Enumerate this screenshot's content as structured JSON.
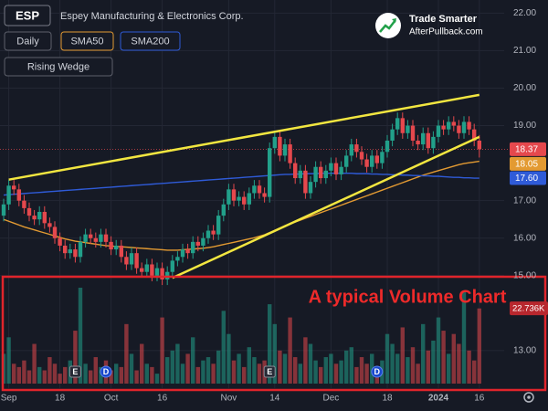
{
  "chart_data": {
    "type": "candlestick",
    "ticker": "ESP",
    "title": "Espey Manufacturing & Electronics Corp.",
    "interval": "Daily",
    "pattern": "Rising Wedge",
    "brand_title": "Trade Smarter",
    "brand_url": "AfterPullback.com",
    "annotation": "A typical Volume Chart",
    "events": [
      "E",
      "D",
      "E",
      "D"
    ],
    "categories": [
      null,
      "Sep",
      null,
      null,
      null,
      null,
      null,
      null,
      null,
      null,
      null,
      "18",
      null,
      null,
      null,
      null,
      null,
      null,
      null,
      null,
      null,
      "Oct",
      null,
      null,
      null,
      null,
      null,
      null,
      null,
      null,
      null,
      "16",
      null,
      null,
      null,
      null,
      null,
      null,
      null,
      null,
      null,
      null,
      null,
      null,
      "Nov",
      null,
      null,
      null,
      null,
      null,
      null,
      null,
      null,
      "14",
      null,
      null,
      null,
      null,
      null,
      null,
      null,
      null,
      null,
      null,
      "Dec",
      null,
      null,
      null,
      null,
      null,
      null,
      null,
      null,
      null,
      null,
      "18",
      null,
      null,
      null,
      null,
      null,
      null,
      null,
      null,
      null,
      "2024",
      null,
      null,
      null,
      null,
      null,
      null,
      null,
      "16"
    ],
    "open": [
      16.6,
      16.9,
      17.4,
      17.3,
      17.0,
      16.8,
      16.6,
      16.5,
      16.7,
      16.4,
      16.3,
      16.0,
      15.8,
      15.6,
      15.7,
      15.5,
      15.9,
      16.1,
      16.0,
      15.9,
      16.1,
      15.9,
      15.7,
      15.8,
      15.5,
      15.3,
      15.6,
      15.2,
      15.1,
      15.3,
      15.0,
      15.2,
      14.9,
      15.1,
      15.4,
      15.5,
      15.7,
      15.6,
      15.9,
      15.8,
      16.0,
      16.2,
      16.1,
      16.6,
      16.9,
      17.3,
      17.0,
      17.1,
      16.9,
      17.2,
      17.4,
      17.2,
      17.1,
      18.4,
      18.7,
      18.2,
      18.5,
      18.0,
      17.6,
      17.8,
      17.2,
      17.5,
      17.9,
      17.6,
      17.8,
      18.0,
      17.7,
      17.9,
      18.2,
      18.5,
      18.3,
      18.1,
      17.9,
      18.2,
      18.0,
      18.3,
      18.6,
      18.9,
      19.2,
      18.8,
      19.0,
      18.6,
      18.5,
      18.8,
      18.4,
      18.7,
      19.0,
      18.9,
      19.1,
      19.0,
      18.8,
      19.1,
      18.9,
      18.6
    ],
    "high": [
      17.05,
      17.55,
      17.55,
      17.45,
      17.15,
      16.95,
      16.75,
      16.85,
      16.85,
      16.55,
      16.45,
      16.15,
      15.95,
      15.85,
      15.85,
      16.05,
      16.25,
      16.25,
      16.15,
      16.25,
      16.25,
      16.05,
      15.95,
      15.95,
      15.65,
      15.75,
      15.75,
      15.35,
      15.45,
      15.45,
      15.35,
      15.35,
      15.25,
      15.55,
      15.65,
      15.85,
      15.85,
      16.05,
      16.05,
      16.15,
      16.35,
      16.35,
      16.75,
      17.05,
      17.45,
      17.45,
      17.25,
      17.25,
      17.35,
      17.55,
      17.55,
      17.35,
      18.55,
      18.85,
      18.85,
      18.65,
      18.65,
      18.15,
      17.95,
      17.95,
      17.65,
      18.05,
      18.05,
      17.95,
      18.15,
      18.15,
      18.05,
      18.35,
      18.65,
      18.65,
      18.45,
      18.25,
      18.35,
      18.35,
      18.45,
      18.75,
      19.05,
      19.35,
      19.35,
      19.15,
      19.15,
      18.75,
      18.95,
      18.95,
      18.85,
      19.15,
      19.15,
      19.25,
      19.25,
      19.15,
      19.25,
      19.25,
      19.05,
      18.75
    ],
    "low": [
      16.45,
      16.75,
      17.15,
      16.85,
      16.65,
      16.45,
      16.35,
      16.35,
      16.25,
      16.15,
      15.85,
      15.65,
      15.45,
      15.45,
      15.35,
      15.35,
      15.75,
      15.85,
      15.75,
      15.75,
      15.75,
      15.55,
      15.55,
      15.35,
      15.15,
      15.15,
      15.05,
      14.95,
      14.95,
      14.85,
      14.85,
      14.75,
      14.75,
      14.95,
      15.25,
      15.35,
      15.45,
      15.45,
      15.65,
      15.65,
      15.85,
      15.95,
      15.95,
      16.45,
      16.75,
      16.85,
      16.85,
      16.75,
      16.75,
      17.05,
      17.05,
      16.95,
      16.95,
      18.25,
      18.05,
      18.05,
      17.85,
      17.45,
      17.45,
      17.05,
      17.05,
      17.35,
      17.45,
      17.45,
      17.65,
      17.55,
      17.55,
      17.75,
      18.05,
      18.15,
      17.95,
      17.75,
      17.75,
      17.85,
      17.85,
      18.15,
      18.45,
      18.75,
      18.65,
      18.65,
      18.45,
      18.35,
      18.35,
      18.25,
      18.25,
      18.55,
      18.75,
      18.75,
      18.85,
      18.65,
      18.65,
      18.75,
      18.45,
      18.15
    ],
    "close": [
      16.9,
      17.4,
      17.3,
      17.0,
      16.8,
      16.6,
      16.5,
      16.7,
      16.4,
      16.3,
      16.0,
      15.8,
      15.6,
      15.7,
      15.5,
      15.9,
      16.1,
      16.0,
      15.9,
      16.1,
      15.9,
      15.7,
      15.8,
      15.5,
      15.3,
      15.6,
      15.2,
      15.1,
      15.3,
      15.0,
      15.2,
      14.9,
      15.1,
      15.4,
      15.5,
      15.7,
      15.6,
      15.9,
      15.8,
      16.0,
      16.2,
      16.1,
      16.6,
      16.9,
      17.3,
      17.0,
      17.1,
      16.9,
      17.2,
      17.4,
      17.2,
      17.1,
      18.4,
      18.7,
      18.2,
      18.5,
      18.0,
      17.6,
      17.8,
      17.2,
      17.5,
      17.9,
      17.6,
      17.8,
      18.0,
      17.7,
      17.9,
      18.2,
      18.5,
      18.3,
      18.1,
      17.9,
      18.2,
      18.0,
      18.3,
      18.6,
      18.9,
      19.2,
      18.8,
      19.0,
      18.6,
      18.5,
      18.8,
      18.4,
      18.7,
      19.0,
      18.9,
      19.1,
      19.0,
      18.8,
      19.1,
      18.9,
      18.6,
      18.37
    ],
    "volume": [
      9000,
      14000,
      6000,
      5000,
      7000,
      4000,
      12000,
      5000,
      4000,
      8000,
      6000,
      3000,
      5000,
      7000,
      16000,
      29000,
      6000,
      4000,
      8000,
      5000,
      7000,
      4000,
      6000,
      5000,
      18000,
      9000,
      4000,
      12000,
      6000,
      5000,
      3000,
      20000,
      8000,
      10000,
      12000,
      6000,
      9000,
      14000,
      5000,
      7000,
      8000,
      6000,
      10000,
      22000,
      15000,
      7000,
      9000,
      5000,
      11000,
      8000,
      6000,
      7000,
      24000,
      18000,
      10000,
      9000,
      20000,
      8000,
      6000,
      14000,
      12000,
      7000,
      5000,
      8000,
      9000,
      6000,
      7000,
      10000,
      11000,
      5000,
      8000,
      6000,
      9000,
      4000,
      7000,
      15000,
      12000,
      9000,
      17000,
      8000,
      11000,
      6000,
      18000,
      10000,
      13000,
      20000,
      16000,
      9000,
      15000,
      12000,
      28000,
      10000,
      7000,
      22736
    ],
    "volume_label": "22.736K",
    "up_color": "#22a08a",
    "down_color": "#e5484d",
    "series": [
      {
        "name": "SMA50",
        "color": "#e39a32",
        "tag_label": "18.05",
        "values": [
          16.5,
          16.45,
          16.4,
          16.35,
          16.3,
          16.26,
          16.22,
          16.18,
          16.14,
          16.1,
          16.06,
          16.02,
          15.98,
          15.95,
          15.92,
          15.9,
          15.88,
          15.86,
          15.84,
          15.82,
          15.8,
          15.79,
          15.78,
          15.77,
          15.76,
          15.75,
          15.74,
          15.73,
          15.72,
          15.71,
          15.7,
          15.69,
          15.68,
          15.68,
          15.68,
          15.69,
          15.7,
          15.71,
          15.72,
          15.73,
          15.75,
          15.77,
          15.8,
          15.83,
          15.86,
          15.89,
          15.92,
          15.95,
          15.98,
          16.01,
          16.05,
          16.09,
          16.15,
          16.21,
          16.27,
          16.33,
          16.38,
          16.43,
          16.48,
          16.53,
          16.58,
          16.63,
          16.68,
          16.73,
          16.78,
          16.83,
          16.88,
          16.93,
          16.98,
          17.03,
          17.08,
          17.13,
          17.18,
          17.23,
          17.28,
          17.33,
          17.38,
          17.43,
          17.48,
          17.53,
          17.58,
          17.63,
          17.68,
          17.72,
          17.76,
          17.8,
          17.84,
          17.88,
          17.92,
          17.96,
          17.99,
          18.01,
          18.03,
          18.05
        ]
      },
      {
        "name": "SMA200",
        "color": "#2f5bd8",
        "tag_label": "17.60",
        "values": [
          17.15,
          17.16,
          17.17,
          17.18,
          17.19,
          17.2,
          17.21,
          17.22,
          17.23,
          17.24,
          17.25,
          17.26,
          17.27,
          17.28,
          17.29,
          17.3,
          17.31,
          17.32,
          17.33,
          17.34,
          17.35,
          17.36,
          17.37,
          17.38,
          17.39,
          17.4,
          17.41,
          17.42,
          17.43,
          17.44,
          17.45,
          17.46,
          17.47,
          17.48,
          17.49,
          17.5,
          17.51,
          17.52,
          17.53,
          17.54,
          17.55,
          17.56,
          17.57,
          17.58,
          17.59,
          17.6,
          17.61,
          17.62,
          17.63,
          17.64,
          17.65,
          17.66,
          17.67,
          17.68,
          17.69,
          17.7,
          17.7,
          17.71,
          17.71,
          17.72,
          17.72,
          17.72,
          17.73,
          17.73,
          17.73,
          17.73,
          17.73,
          17.73,
          17.73,
          17.72,
          17.72,
          17.72,
          17.71,
          17.71,
          17.7,
          17.7,
          17.69,
          17.69,
          17.68,
          17.68,
          17.67,
          17.67,
          17.66,
          17.66,
          17.65,
          17.65,
          17.64,
          17.63,
          17.62,
          17.62,
          17.61,
          17.61,
          17.6,
          17.6
        ]
      }
    ],
    "trendlines": [
      {
        "color": "#f2e640",
        "x": [
          1,
          93
        ],
        "values": [
          17.56,
          19.82
        ]
      },
      {
        "color": "#f2e640",
        "x": [
          33,
          93
        ],
        "values": [
          14.94,
          18.7
        ]
      }
    ],
    "ylim": [
      12,
      22.35
    ],
    "yticks": [
      {
        "value": 22,
        "label": "22.00"
      },
      {
        "value": 21,
        "label": "21.00"
      },
      {
        "value": 20,
        "label": "20.00"
      },
      {
        "value": 19,
        "label": "19.00"
      },
      {
        "value": 17,
        "label": "17.00"
      },
      {
        "value": 16,
        "label": "16.00"
      },
      {
        "value": 15,
        "label": "15.00"
      },
      {
        "value": 13,
        "label": "13.00"
      }
    ],
    "grid": true
  }
}
